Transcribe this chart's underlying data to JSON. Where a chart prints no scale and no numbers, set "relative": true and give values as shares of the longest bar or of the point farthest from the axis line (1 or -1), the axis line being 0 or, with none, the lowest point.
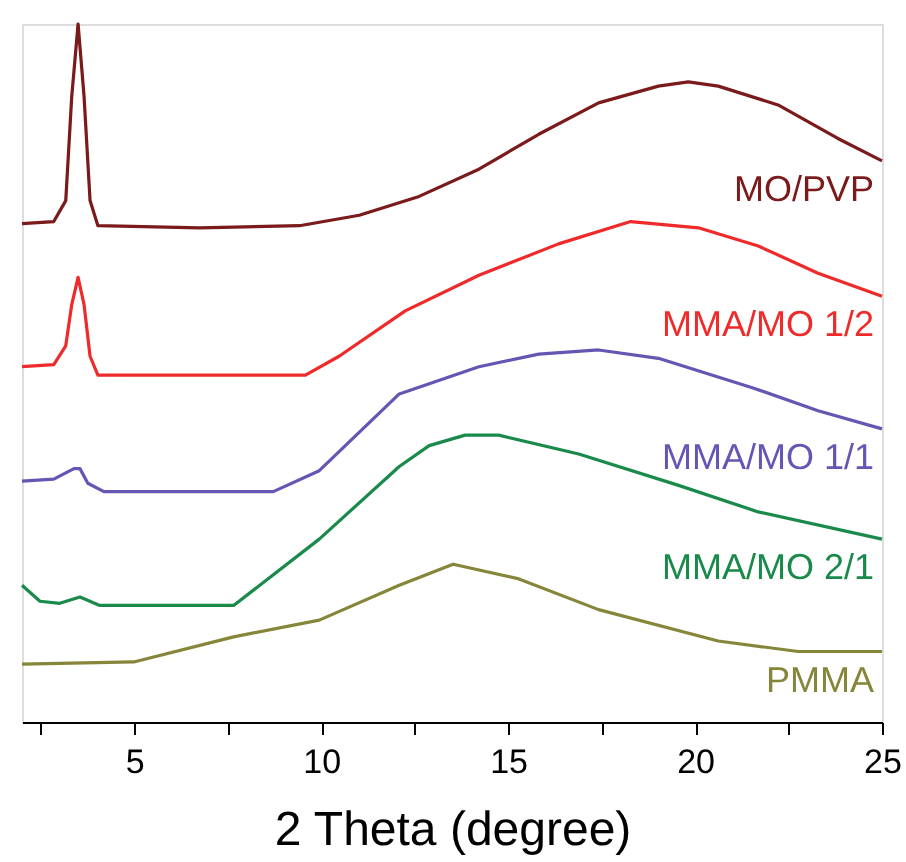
{
  "chart_data": {
    "type": "line",
    "relative": true,
    "xlabel": "2 Theta (degree)",
    "xlim": [
      2,
      25
    ],
    "xticks": [
      {
        "value": 2.5,
        "label": null
      },
      5,
      {
        "value": 7.5,
        "label": null
      },
      10,
      {
        "value": 12.5,
        "label": null
      },
      15,
      {
        "value": 17.5,
        "label": null
      },
      20,
      {
        "value": 22.5,
        "label": null
      },
      25
    ],
    "grid": false,
    "marker": "none",
    "line_style": "solid",
    "series": [
      {
        "name": "MO/PVP",
        "color": "#7a1a1a",
        "x": [
          2.0,
          2.85,
          3.17,
          3.33,
          3.5,
          3.66,
          3.82,
          4.03,
          6.75,
          9.42,
          11.02,
          12.62,
          14.22,
          15.82,
          17.42,
          19.02,
          19.82,
          20.62,
          22.22,
          23.82,
          25.0
        ],
        "values": [
          0.714,
          0.717,
          0.747,
          0.896,
          1.0,
          0.896,
          0.747,
          0.711,
          0.708,
          0.711,
          0.726,
          0.753,
          0.792,
          0.842,
          0.887,
          0.911,
          0.917,
          0.911,
          0.884,
          0.836,
          0.804
        ]
      },
      {
        "name": "MMA/MO 1/2",
        "color": "#ee2a2a",
        "x": [
          2.0,
          2.85,
          3.17,
          3.33,
          3.5,
          3.66,
          3.82,
          4.03,
          6.75,
          9.58,
          10.48,
          12.25,
          14.22,
          16.35,
          18.28,
          20.09,
          21.69,
          23.29,
          25.0
        ],
        "values": [
          0.509,
          0.512,
          0.539,
          0.598,
          0.637,
          0.598,
          0.524,
          0.497,
          0.497,
          0.497,
          0.524,
          0.589,
          0.64,
          0.685,
          0.717,
          0.708,
          0.682,
          0.643,
          0.61
        ]
      },
      {
        "name": "MMA/MO 1/1",
        "color": "#6656b4",
        "x": [
          2.0,
          2.85,
          3.17,
          3.39,
          3.55,
          3.76,
          4.19,
          6.75,
          8.72,
          9.95,
          12.09,
          14.22,
          15.82,
          17.42,
          19.02,
          21.53,
          23.29,
          25.0
        ],
        "values": [
          0.345,
          0.348,
          0.357,
          0.363,
          0.363,
          0.342,
          0.33,
          0.33,
          0.33,
          0.36,
          0.47,
          0.509,
          0.527,
          0.533,
          0.521,
          0.479,
          0.446,
          0.42
        ]
      },
      {
        "name": "MMA/MO 2/1",
        "color": "#1a8a4a",
        "x": [
          2.0,
          2.48,
          3.01,
          3.55,
          4.08,
          7.66,
          9.95,
          12.09,
          12.89,
          13.85,
          14.75,
          16.89,
          19.56,
          21.69,
          25.0
        ],
        "values": [
          0.196,
          0.173,
          0.17,
          0.179,
          0.167,
          0.167,
          0.262,
          0.366,
          0.396,
          0.411,
          0.411,
          0.384,
          0.339,
          0.301,
          0.262
        ]
      },
      {
        "name": "PMMA",
        "color": "#86863a",
        "x": [
          2.0,
          4.99,
          7.66,
          9.95,
          12.09,
          13.53,
          15.29,
          17.42,
          20.62,
          22.76,
          25.0
        ],
        "values": [
          0.083,
          0.086,
          0.122,
          0.146,
          0.196,
          0.226,
          0.205,
          0.161,
          0.116,
          0.101,
          0.101
        ]
      }
    ]
  }
}
